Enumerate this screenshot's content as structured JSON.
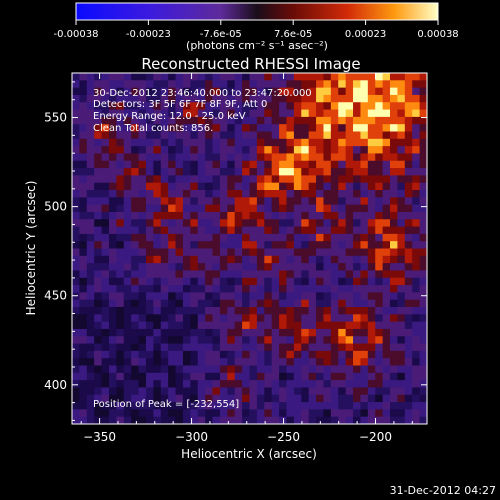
{
  "chart_data": {
    "type": "heatmap",
    "title": "Reconstructed RHESSI Image",
    "xlabel": "Heliocentric X (arcsec)",
    "ylabel": "Heliocentric Y (arcsec)",
    "xlim": [
      -365,
      -172
    ],
    "ylim": [
      378,
      575
    ],
    "x_ticks": [
      -350,
      -300,
      -250,
      -200
    ],
    "y_ticks": [
      400,
      450,
      500,
      550
    ],
    "colorbar": {
      "ticks": [
        "-0.00038",
        "-0.00023",
        "-7.6e-05",
        "7.6e-05",
        "0.00023",
        "0.00038"
      ],
      "units": "(photons cm⁻² s⁻¹ asec⁻²)",
      "range": [
        -0.00038,
        0.00038
      ]
    },
    "annotations": [
      "30-Dec-2012 23:46:40.000 to 23:47:20.000",
      "Detectors: 3F 5F 6F 7F 8F 9F, Att 0",
      "Energy Range: 12.0 - 25.0 keV",
      "Clean     Total counts: 856."
    ],
    "peak_label": "Position of Peak = [-232,554]",
    "peak": [
      -232,
      554
    ]
  },
  "footer": {
    "timestamp": "31-Dec-2012 04:27"
  }
}
